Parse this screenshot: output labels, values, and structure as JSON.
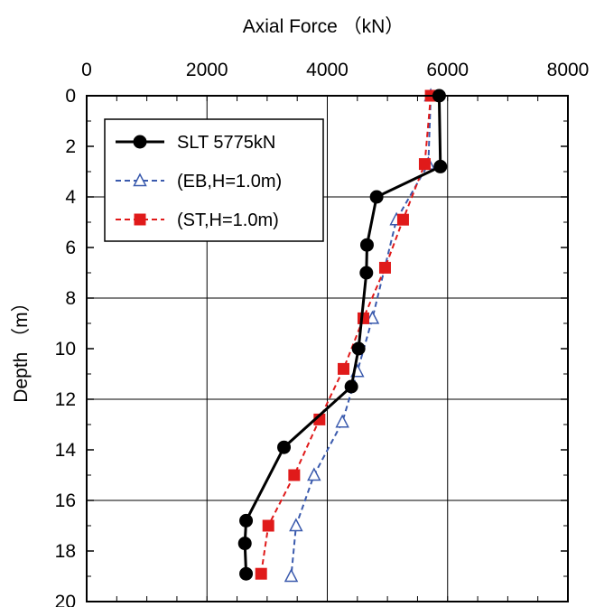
{
  "chart_data": {
    "type": "line",
    "xlabel": "Axial Force （kN）",
    "ylabel": "Depth （m）",
    "xlim": [
      0,
      8000
    ],
    "ylim": [
      0,
      20
    ],
    "y_inverted": true,
    "x_axis_position": "top",
    "x_ticks": [
      "0",
      "2000",
      "4000",
      "6000",
      "8000"
    ],
    "y_ticks": [
      "0",
      "2",
      "4",
      "6",
      "8",
      "10",
      "12",
      "14",
      "16",
      "18",
      "20"
    ],
    "grid": true,
    "legend_position": "top-left",
    "series": [
      {
        "name": "SLT 5775kN",
        "color": "#000000",
        "marker": "circle-filled",
        "dash": "solid",
        "points": [
          {
            "x": 5860,
            "y": 0
          },
          {
            "x": 5880,
            "y": 2.8
          },
          {
            "x": 4820,
            "y": 4.0
          },
          {
            "x": 4660,
            "y": 5.9
          },
          {
            "x": 4650,
            "y": 7.0
          },
          {
            "x": 4520,
            "y": 10.0
          },
          {
            "x": 4400,
            "y": 11.5
          },
          {
            "x": 3280,
            "y": 13.9
          },
          {
            "x": 2650,
            "y": 16.8
          },
          {
            "x": 2630,
            "y": 17.7
          },
          {
            "x": 2650,
            "y": 18.9
          }
        ]
      },
      {
        "name": "(EB,H=1.0m)",
        "color": "#3a5aad",
        "marker": "triangle-open",
        "dash": "dashed",
        "points": [
          {
            "x": 5720,
            "y": 0
          },
          {
            "x": 5680,
            "y": 2.7
          },
          {
            "x": 5150,
            "y": 4.9
          },
          {
            "x": 4750,
            "y": 8.8
          },
          {
            "x": 4500,
            "y": 10.9
          },
          {
            "x": 4250,
            "y": 12.9
          },
          {
            "x": 3780,
            "y": 15.0
          },
          {
            "x": 3480,
            "y": 17.0
          },
          {
            "x": 3400,
            "y": 19.0
          }
        ]
      },
      {
        "name": "(ST,H=1.0m)",
        "color": "#e01a1a",
        "marker": "square-filled",
        "dash": "dashed",
        "points": [
          {
            "x": 5720,
            "y": 0
          },
          {
            "x": 5620,
            "y": 2.7
          },
          {
            "x": 5260,
            "y": 4.9
          },
          {
            "x": 4960,
            "y": 6.8
          },
          {
            "x": 4600,
            "y": 8.8
          },
          {
            "x": 4270,
            "y": 10.8
          },
          {
            "x": 3870,
            "y": 12.8
          },
          {
            "x": 3450,
            "y": 15.0
          },
          {
            "x": 3020,
            "y": 17.0
          },
          {
            "x": 2900,
            "y": 18.9
          }
        ]
      }
    ]
  }
}
